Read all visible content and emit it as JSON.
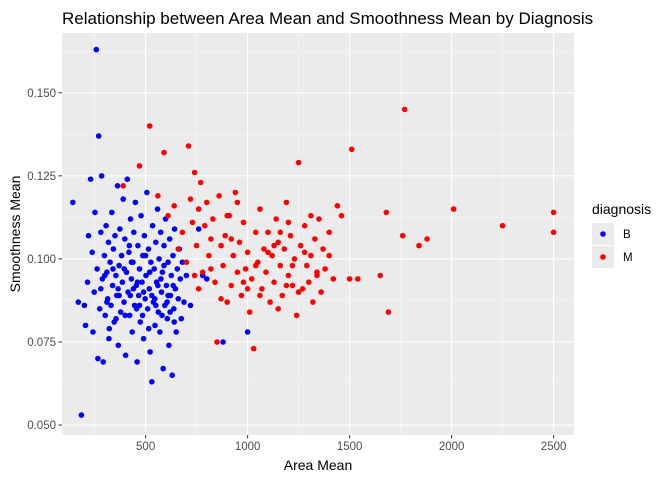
{
  "chart_data": {
    "type": "scatter",
    "title": "Relationship between Area Mean and Smoothness Mean by Diagnosis",
    "xlabel": "Area Mean",
    "ylabel": "Smoothness Mean",
    "xlim": [
      90,
      2600
    ],
    "ylim": [
      0.047,
      0.168
    ],
    "x_ticks": [
      500,
      1000,
      1500,
      2000,
      2500
    ],
    "x_tick_labels": [
      "500",
      "1000",
      "1500",
      "2000",
      "2500"
    ],
    "y_ticks": [
      0.05,
      0.075,
      0.1,
      0.125,
      0.15
    ],
    "y_tick_labels": [
      "0.050",
      "0.075",
      "0.100",
      "0.125",
      "0.150"
    ],
    "grid": true,
    "legend": {
      "title": "diagnosis",
      "placement": "right",
      "entries": [
        {
          "label": "B",
          "color": "#0000ff"
        },
        {
          "label": "M",
          "color": "#ff0000"
        }
      ]
    },
    "series": [
      {
        "name": "B",
        "color": "#0000ff",
        "points": [
          [
            143,
            0.117
          ],
          [
            170,
            0.087
          ],
          [
            185,
            0.053
          ],
          [
            200,
            0.086
          ],
          [
            205,
            0.08
          ],
          [
            215,
            0.093
          ],
          [
            220,
            0.107
          ],
          [
            230,
            0.124
          ],
          [
            238,
            0.102
          ],
          [
            242,
            0.078
          ],
          [
            248,
            0.09
          ],
          [
            252,
            0.114
          ],
          [
            258,
            0.163
          ],
          [
            262,
            0.097
          ],
          [
            266,
            0.07
          ],
          [
            270,
            0.137
          ],
          [
            275,
            0.085
          ],
          [
            280,
            0.108
          ],
          [
            284,
            0.125
          ],
          [
            288,
            0.094
          ],
          [
            292,
            0.069
          ],
          [
            298,
            0.101
          ],
          [
            302,
            0.083
          ],
          [
            306,
            0.11
          ],
          [
            310,
            0.096
          ],
          [
            314,
            0.088
          ],
          [
            318,
            0.105
          ],
          [
            322,
            0.079
          ],
          [
            326,
            0.099
          ],
          [
            330,
            0.086
          ],
          [
            334,
            0.114
          ],
          [
            338,
            0.092
          ],
          [
            342,
            0.103
          ],
          [
            346,
            0.081
          ],
          [
            350,
            0.107
          ],
          [
            354,
            0.095
          ],
          [
            358,
            0.089
          ],
          [
            362,
            0.122
          ],
          [
            366,
            0.074
          ],
          [
            370,
            0.098
          ],
          [
            374,
            0.109
          ],
          [
            378,
            0.084
          ],
          [
            382,
            0.101
          ],
          [
            386,
            0.093
          ],
          [
            390,
            0.118
          ],
          [
            394,
            0.087
          ],
          [
            398,
            0.106
          ],
          [
            402,
            0.071
          ],
          [
            406,
            0.096
          ],
          [
            410,
            0.124
          ],
          [
            414,
            0.09
          ],
          [
            418,
            0.102
          ],
          [
            422,
            0.083
          ],
          [
            426,
            0.112
          ],
          [
            430,
            0.094
          ],
          [
            434,
            0.078
          ],
          [
            438,
            0.099
          ],
          [
            442,
            0.108
          ],
          [
            446,
            0.086
          ],
          [
            450,
            0.117
          ],
          [
            454,
            0.092
          ],
          [
            458,
            0.069
          ],
          [
            462,
            0.104
          ],
          [
            466,
            0.089
          ],
          [
            470,
            0.097
          ],
          [
            474,
            0.081
          ],
          [
            478,
            0.113
          ],
          [
            482,
            0.093
          ],
          [
            486,
            0.101
          ],
          [
            490,
            0.076
          ],
          [
            494,
            0.107
          ],
          [
            498,
            0.088
          ],
          [
            502,
            0.095
          ],
          [
            506,
            0.12
          ],
          [
            510,
            0.085
          ],
          [
            514,
            0.103
          ],
          [
            518,
            0.091
          ],
          [
            522,
            0.072
          ],
          [
            526,
            0.099
          ],
          [
            530,
            0.063
          ],
          [
            534,
            0.11
          ],
          [
            538,
            0.087
          ],
          [
            542,
            0.097
          ],
          [
            546,
            0.08
          ],
          [
            550,
            0.105
          ],
          [
            554,
            0.093
          ],
          [
            558,
            0.115
          ],
          [
            562,
            0.084
          ],
          [
            566,
            0.1
          ],
          [
            570,
            0.078
          ],
          [
            574,
            0.108
          ],
          [
            578,
            0.09
          ],
          [
            582,
            0.096
          ],
          [
            586,
            0.067
          ],
          [
            590,
            0.104
          ],
          [
            594,
            0.086
          ],
          [
            598,
            0.112
          ],
          [
            602,
            0.092
          ],
          [
            606,
            0.082
          ],
          [
            610,
            0.099
          ],
          [
            614,
            0.074
          ],
          [
            618,
            0.106
          ],
          [
            622,
            0.089
          ],
          [
            626,
            0.095
          ],
          [
            630,
            0.065
          ],
          [
            634,
            0.101
          ],
          [
            638,
            0.085
          ],
          [
            642,
            0.109
          ],
          [
            646,
            0.091
          ],
          [
            650,
            0.078
          ],
          [
            655,
            0.097
          ],
          [
            660,
            0.088
          ],
          [
            665,
            0.103
          ],
          [
            670,
            0.094
          ],
          [
            675,
            0.082
          ],
          [
            680,
            0.099
          ],
          [
            688,
            0.087
          ],
          [
            700,
            0.095
          ],
          [
            720,
            0.086
          ],
          [
            760,
            0.109
          ],
          [
            780,
            0.095
          ],
          [
            800,
            0.094
          ],
          [
            880,
            0.075
          ],
          [
            1000,
            0.078
          ],
          [
            320,
            0.076
          ],
          [
            355,
            0.082
          ],
          [
            365,
            0.091
          ],
          [
            395,
            0.097
          ],
          [
            425,
            0.089
          ],
          [
            455,
            0.085
          ],
          [
            485,
            0.083
          ],
          [
            515,
            0.079
          ],
          [
            545,
            0.088
          ],
          [
            575,
            0.094
          ],
          [
            605,
            0.087
          ],
          [
            635,
            0.092
          ],
          [
            280,
            0.091
          ],
          [
            310,
            0.087
          ],
          [
            340,
            0.097
          ],
          [
            370,
            0.089
          ],
          [
            400,
            0.083
          ],
          [
            430,
            0.099
          ],
          [
            460,
            0.093
          ],
          [
            490,
            0.09
          ],
          [
            520,
            0.096
          ],
          [
            550,
            0.086
          ],
          [
            580,
            0.083
          ],
          [
            610,
            0.089
          ],
          [
            640,
            0.081
          ],
          [
            300,
            0.095
          ],
          [
            420,
            0.104
          ],
          [
            440,
            0.091
          ],
          [
            470,
            0.086
          ],
          [
            500,
            0.101
          ],
          [
            530,
            0.089
          ],
          [
            560,
            0.092
          ],
          [
            590,
            0.098
          ],
          [
            620,
            0.084
          ]
        ]
      },
      {
        "name": "M",
        "color": "#ff0000",
        "points": [
          [
            390,
            0.122
          ],
          [
            470,
            0.128
          ],
          [
            520,
            0.14
          ],
          [
            560,
            0.119
          ],
          [
            590,
            0.132
          ],
          [
            610,
            0.113
          ],
          [
            640,
            0.116
          ],
          [
            660,
            0.103
          ],
          [
            680,
            0.108
          ],
          [
            700,
            0.099
          ],
          [
            710,
            0.134
          ],
          [
            720,
            0.118
          ],
          [
            730,
            0.111
          ],
          [
            740,
            0.126
          ],
          [
            750,
            0.104
          ],
          [
            760,
            0.115
          ],
          [
            770,
            0.123
          ],
          [
            780,
            0.096
          ],
          [
            790,
            0.11
          ],
          [
            800,
            0.117
          ],
          [
            810,
            0.101
          ],
          [
            820,
            0.106
          ],
          [
            830,
            0.112
          ],
          [
            840,
            0.093
          ],
          [
            850,
            0.075
          ],
          [
            860,
            0.119
          ],
          [
            870,
            0.104
          ],
          [
            880,
            0.098
          ],
          [
            890,
            0.107
          ],
          [
            900,
            0.087
          ],
          [
            910,
            0.113
          ],
          [
            920,
            0.092
          ],
          [
            930,
            0.101
          ],
          [
            940,
            0.12
          ],
          [
            950,
            0.096
          ],
          [
            960,
            0.105
          ],
          [
            970,
            0.089
          ],
          [
            980,
            0.111
          ],
          [
            990,
            0.097
          ],
          [
            1000,
            0.102
          ],
          [
            1010,
            0.084
          ],
          [
            1020,
            0.094
          ],
          [
            1030,
            0.073
          ],
          [
            1040,
            0.108
          ],
          [
            1050,
            0.099
          ],
          [
            1060,
            0.115
          ],
          [
            1070,
            0.091
          ],
          [
            1080,
            0.103
          ],
          [
            1090,
            0.096
          ],
          [
            1100,
            0.108
          ],
          [
            1110,
            0.087
          ],
          [
            1120,
            0.101
          ],
          [
            1130,
            0.093
          ],
          [
            1140,
            0.112
          ],
          [
            1150,
            0.105
          ],
          [
            1160,
            0.098
          ],
          [
            1170,
            0.089
          ],
          [
            1180,
            0.103
          ],
          [
            1190,
            0.117
          ],
          [
            1200,
            0.095
          ],
          [
            1210,
            0.107
          ],
          [
            1220,
            0.092
          ],
          [
            1230,
            0.1
          ],
          [
            1240,
            0.083
          ],
          [
            1250,
            0.129
          ],
          [
            1260,
            0.104
          ],
          [
            1270,
            0.091
          ],
          [
            1280,
            0.11
          ],
          [
            1290,
            0.098
          ],
          [
            1300,
            0.093
          ],
          [
            1310,
            0.101
          ],
          [
            1320,
            0.087
          ],
          [
            1330,
            0.106
          ],
          [
            1340,
            0.096
          ],
          [
            1350,
            0.112
          ],
          [
            1360,
            0.09
          ],
          [
            1370,
            0.103
          ],
          [
            1380,
            0.097
          ],
          [
            1400,
            0.108
          ],
          [
            1420,
            0.094
          ],
          [
            1440,
            0.116
          ],
          [
            1460,
            0.113
          ],
          [
            1500,
            0.094
          ],
          [
            1510,
            0.133
          ],
          [
            1540,
            0.094
          ],
          [
            1650,
            0.095
          ],
          [
            1680,
            0.114
          ],
          [
            1690,
            0.084
          ],
          [
            1760,
            0.107
          ],
          [
            1770,
            0.145
          ],
          [
            1840,
            0.104
          ],
          [
            1880,
            0.106
          ],
          [
            2010,
            0.115
          ],
          [
            2250,
            0.11
          ],
          [
            2500,
            0.114
          ],
          [
            2500,
            0.108
          ],
          [
            740,
            0.095
          ],
          [
            760,
            0.091
          ],
          [
            820,
            0.097
          ],
          [
            870,
            0.088
          ],
          [
            920,
            0.106
          ],
          [
            980,
            0.093
          ],
          [
            1040,
            0.098
          ],
          [
            1100,
            0.102
          ],
          [
            1160,
            0.108
          ],
          [
            1220,
            0.098
          ],
          [
            1280,
            0.102
          ],
          [
            1340,
            0.095
          ],
          [
            1400,
            0.101
          ],
          [
            1060,
            0.089
          ],
          [
            1150,
            0.085
          ],
          [
            1000,
            0.091
          ],
          [
            900,
            0.113
          ],
          [
            950,
            0.117
          ],
          [
            1130,
            0.104
          ],
          [
            1200,
            0.111
          ],
          [
            1190,
            0.092
          ],
          [
            1310,
            0.113
          ],
          [
            1250,
            0.09
          ]
        ]
      }
    ]
  }
}
